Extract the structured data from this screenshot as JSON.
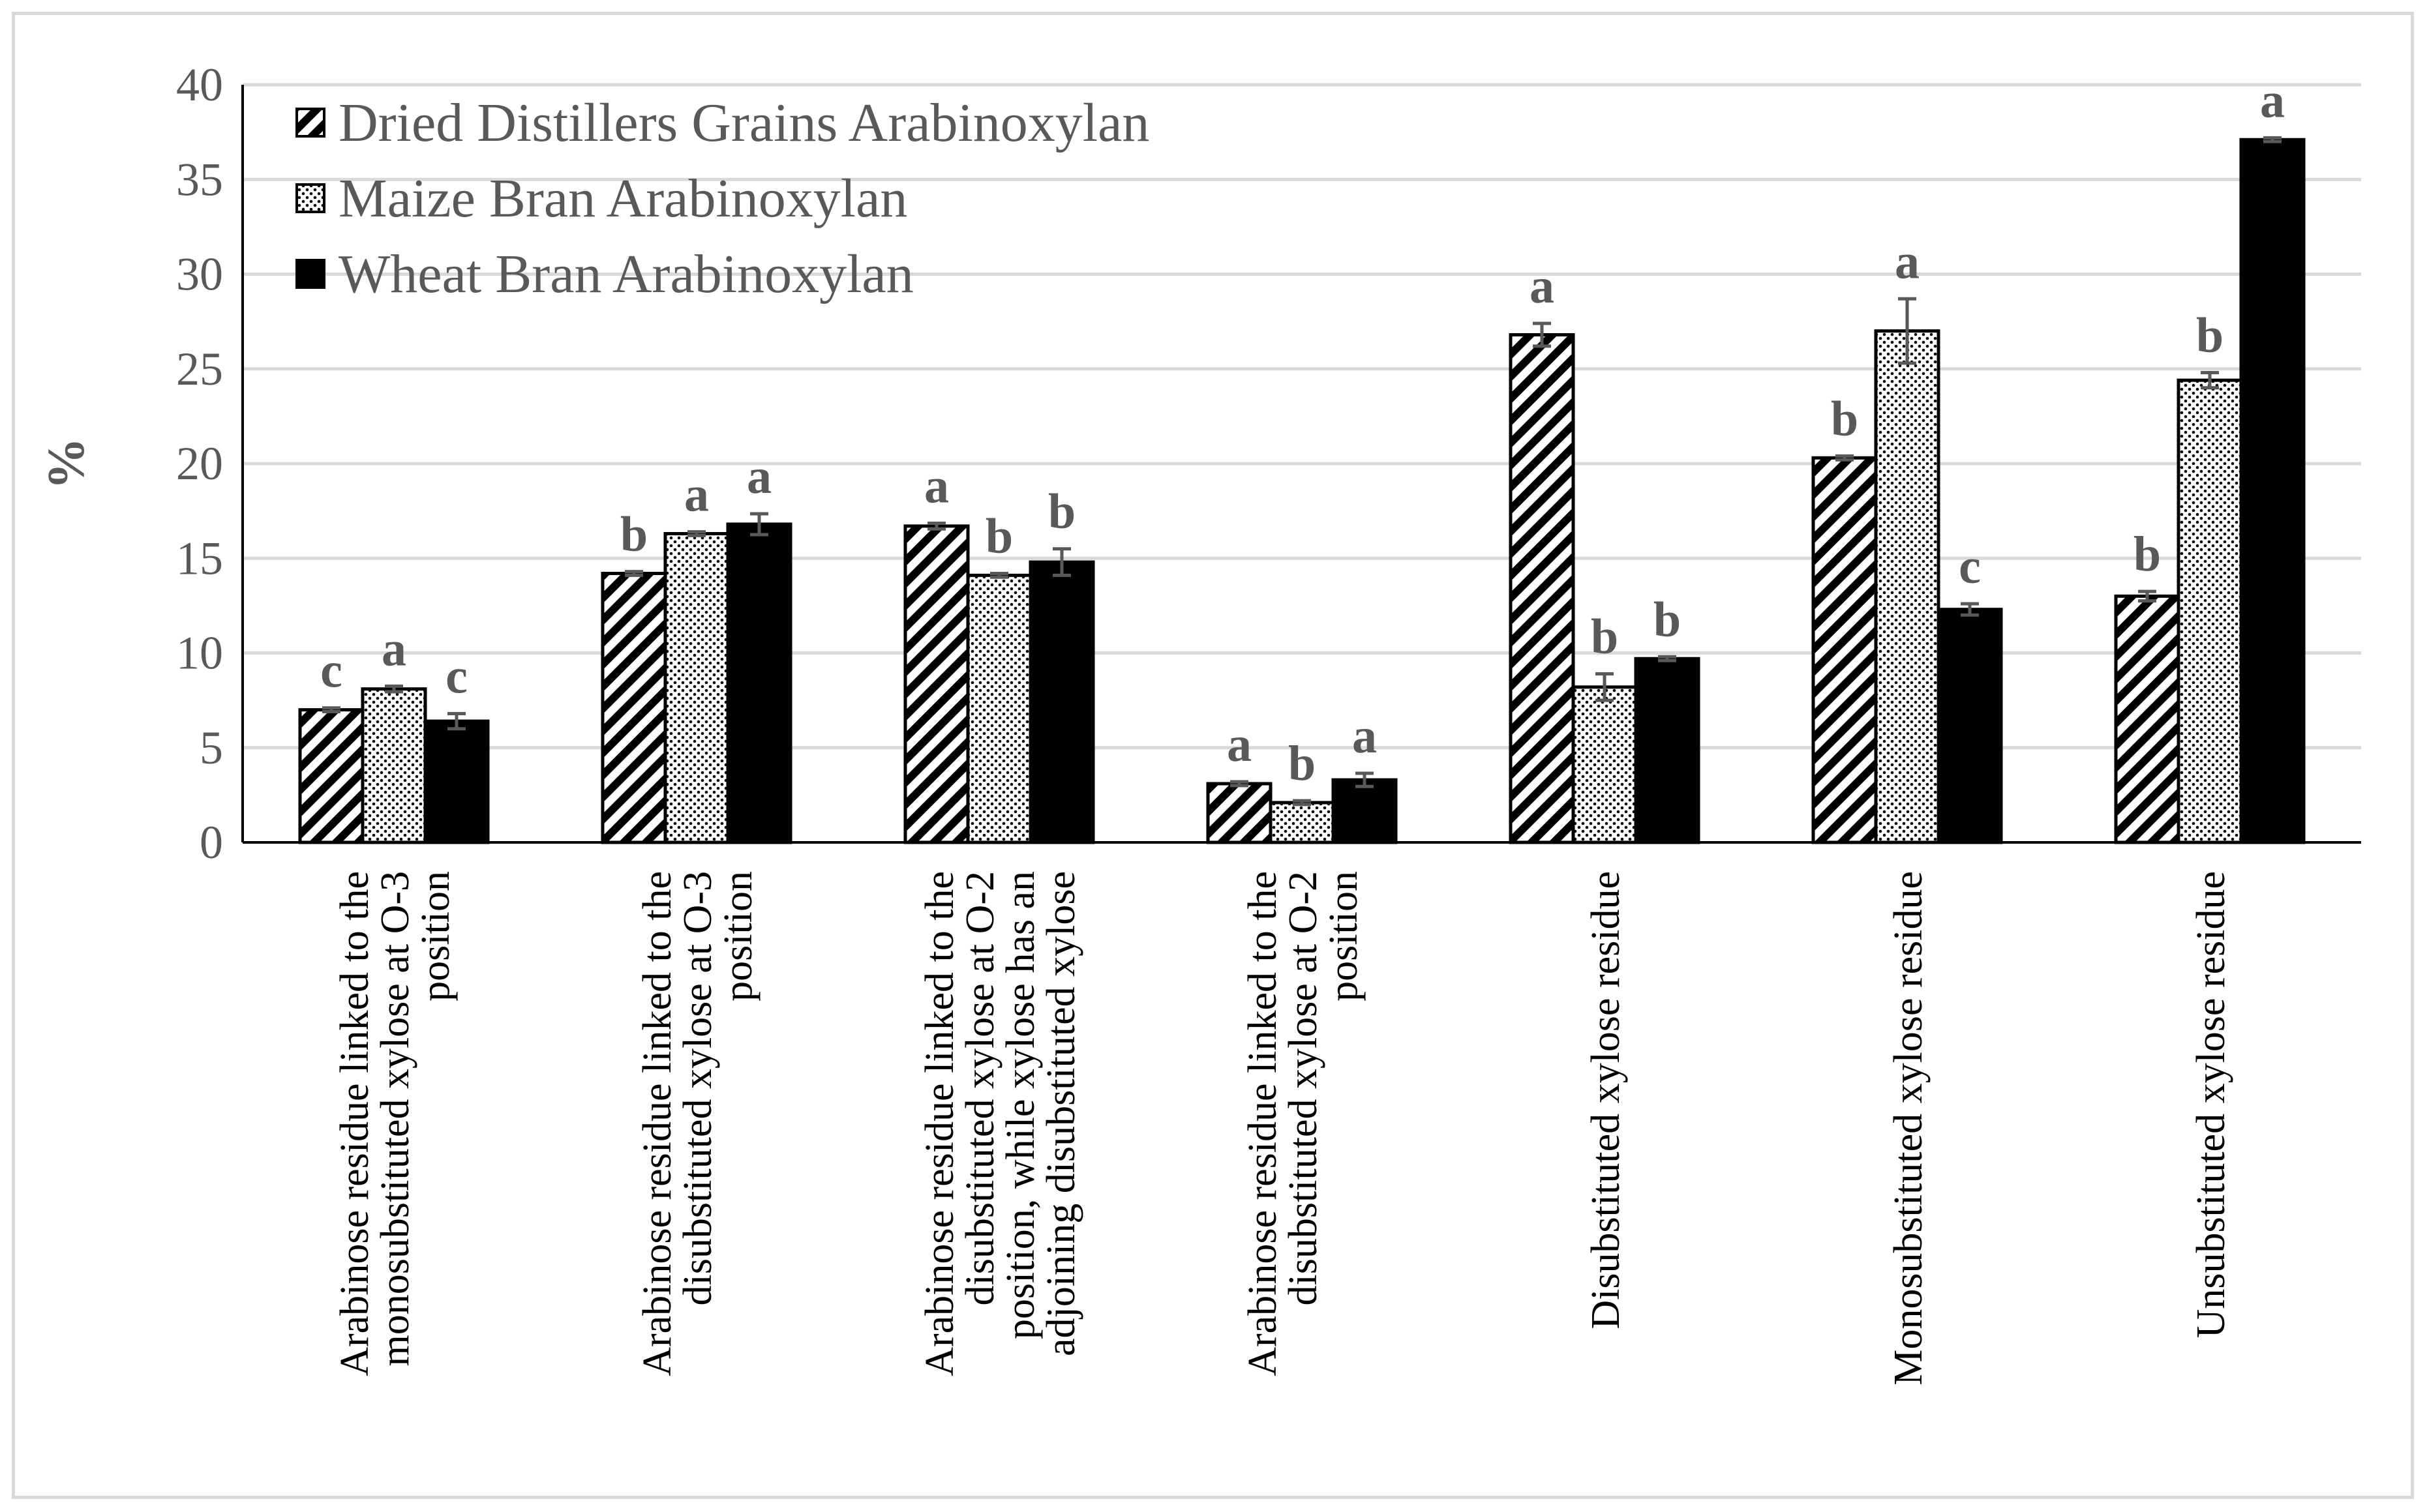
{
  "chart_data": {
    "type": "bar",
    "title": "",
    "xlabel": "",
    "ylabel": "%",
    "ylim": [
      0,
      40
    ],
    "yticks": [
      0,
      5,
      10,
      15,
      20,
      25,
      30,
      35,
      40
    ],
    "grid": true,
    "legend_position": "top-left",
    "categories": [
      [
        "Arabinose residue linked to the",
        "monosubstituted xylose at O-3",
        "position"
      ],
      [
        "Arabinose residue linked to the",
        "disubstituted xylose at O-3",
        "position"
      ],
      [
        "Arabinose residue linked to the",
        "disubstituted xylose at O-2",
        "position, while xylose has an",
        "adjoining disubstituted xylose"
      ],
      [
        "Arabinose residue linked to the",
        "disubstituted xylose at O-2",
        "position"
      ],
      [
        "Disubstituted xylose residue"
      ],
      [
        "Monosubstituted xylose residue"
      ],
      [
        "Unsubstituted xylose residue"
      ]
    ],
    "series": [
      {
        "name": "Dried Distillers Grains Arabinoxylan",
        "pattern": "diagonal-hatch",
        "color": "#000000",
        "values": [
          7.0,
          14.2,
          16.7,
          3.1,
          26.8,
          20.3,
          13.0
        ],
        "errors": [
          0.1,
          0.1,
          0.15,
          0.1,
          0.6,
          0.1,
          0.25
        ],
        "letters": [
          "c",
          "b",
          "a",
          "a",
          "a",
          "b",
          "b"
        ]
      },
      {
        "name": "Maize Bran Arabinoxylan",
        "pattern": "dots",
        "color": "#000000",
        "values": [
          8.1,
          16.3,
          14.1,
          2.1,
          8.2,
          27.0,
          24.4
        ],
        "errors": [
          0.15,
          0.1,
          0.1,
          0.1,
          0.7,
          1.7,
          0.4
        ],
        "letters": [
          "a",
          "a",
          "b",
          "b",
          "b",
          "a",
          "b"
        ]
      },
      {
        "name": "Wheat Bran Arabinoxylan",
        "pattern": "solid",
        "color": "#000000",
        "values": [
          6.4,
          16.8,
          14.8,
          3.3,
          9.7,
          12.3,
          37.1
        ],
        "errors": [
          0.4,
          0.55,
          0.7,
          0.35,
          0.1,
          0.3,
          0.1
        ],
        "letters": [
          "c",
          "a",
          "b",
          "a",
          "b",
          "c",
          "a"
        ]
      }
    ]
  }
}
